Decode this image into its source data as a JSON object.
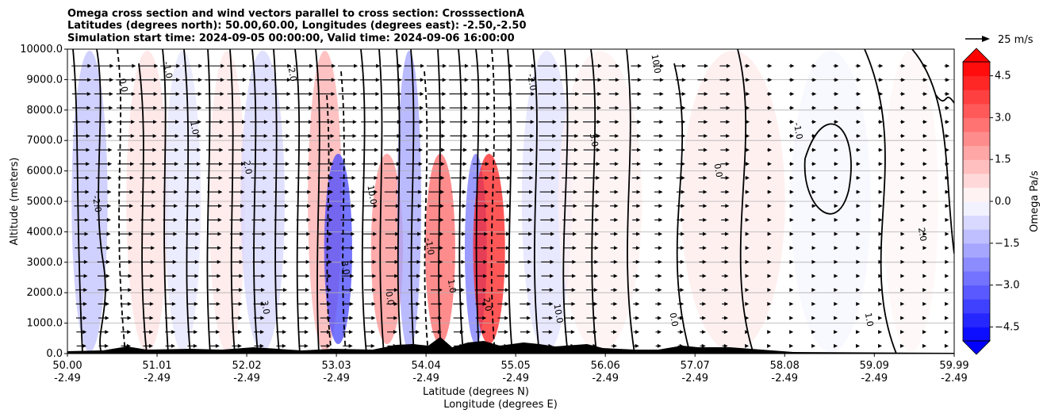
{
  "chart_data": {
    "type": "heatmap",
    "title_lines": [
      "Omega cross section and wind vectors parallel to cross section: CrosssectionA",
      "Latitudes (degrees north): 50.00,60.00, Longitudes (degrees east): -2.50,-2.50",
      "Simulation start time: 2024-09-05 00:00:00, Valid time: 2024-09-06 16:00:00"
    ],
    "ylabel": "Altitude (meters)",
    "xlabel_lat": "Latitude (degrees N)",
    "xlabel_lon": "Longitude (degrees E)",
    "ylim": [
      0,
      10000
    ],
    "xlim": [
      50.0,
      59.99
    ],
    "y_ticks": [
      "0.0",
      "1000.0",
      "2000.0",
      "3000.0",
      "4000.0",
      "5000.0",
      "6000.0",
      "7000.0",
      "8000.0",
      "9000.0",
      "10000.0"
    ],
    "x_ticks_lat": [
      "50.00",
      "51.01",
      "52.02",
      "53.03",
      "54.04",
      "55.05",
      "56.06",
      "57.07",
      "58.08",
      "59.09",
      "59.99"
    ],
    "x_ticks_lon": [
      "-2.49",
      "-2.49",
      "-2.49",
      "-2.49",
      "-2.49",
      "-2.49",
      "-2.49",
      "-2.49",
      "-2.49",
      "-2.49",
      "-2.49"
    ],
    "colorbar": {
      "label": "Omega Pa/s",
      "ticks": [
        "4.5",
        "3.0",
        "1.5",
        "0.0",
        "−1.5",
        "−3.0",
        "−4.5"
      ],
      "range": [
        -5.0,
        5.0
      ],
      "positive_color": "#ff0000",
      "negative_color": "#0000ff",
      "extend": "both"
    },
    "quiver_key": "25 m/s",
    "contour_label_samples": [
      "0.0",
      "-1.0",
      "1.0",
      "2.0",
      "-2.0",
      "3.0",
      "10.0"
    ],
    "omega_bands": [
      {
        "lat": 50.25,
        "value": -1.2
      },
      {
        "lat": 50.9,
        "value": 0.6
      },
      {
        "lat": 51.3,
        "value": -0.5
      },
      {
        "lat": 51.8,
        "value": 0.5
      },
      {
        "lat": 52.2,
        "value": -0.8
      },
      {
        "lat": 52.9,
        "value": 1.6
      },
      {
        "lat": 53.05,
        "value": -3.6
      },
      {
        "lat": 53.6,
        "value": 2.2
      },
      {
        "lat": 53.85,
        "value": -1.8
      },
      {
        "lat": 54.2,
        "value": 3.0
      },
      {
        "lat": 54.6,
        "value": -2.6
      },
      {
        "lat": 54.75,
        "value": 4.4
      },
      {
        "lat": 55.4,
        "value": -0.6
      },
      {
        "lat": 56.0,
        "value": 0.3
      },
      {
        "lat": 57.5,
        "value": 0.4
      },
      {
        "lat": 58.6,
        "value": -0.2
      },
      {
        "lat": 59.5,
        "value": 0.2
      }
    ]
  }
}
